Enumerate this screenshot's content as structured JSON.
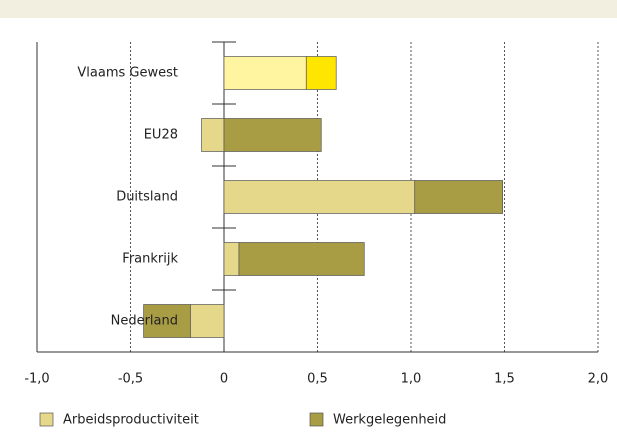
{
  "chart_data": {
    "type": "bar",
    "orientation": "horizontal",
    "stacked": true,
    "categories": [
      "Vlaams Gewest",
      "EU28",
      "Duitsland",
      "Frankrijk",
      "Nederland"
    ],
    "series": [
      {
        "name": "Arbeidsproductiviteit",
        "color": "#e6d88a",
        "colors": [
          "#fff5a0",
          "#e6d88a",
          "#e6d88a",
          "#e6d88a",
          "#e6d88a"
        ],
        "values": [
          0.44,
          -0.12,
          1.02,
          0.08,
          -0.18
        ]
      },
      {
        "name": "Werkgelegenheid",
        "color": "#a89d44",
        "colors": [
          "#ffe600",
          "#a89d44",
          "#a89d44",
          "#a89d44",
          "#a89d44"
        ],
        "values": [
          0.16,
          0.52,
          0.47,
          0.67,
          -0.25
        ]
      }
    ],
    "xlim": [
      -1.0,
      2.0
    ],
    "xticks": [
      {
        "value": -1.0,
        "label": "-1,0"
      },
      {
        "value": -0.5,
        "label": "-0,5"
      },
      0,
      {
        "value": 0.5,
        "label": "0,5"
      },
      {
        "value": 1.0,
        "label": "1,0"
      },
      {
        "value": 1.5,
        "label": "1,5"
      },
      {
        "value": 2.0,
        "label": "2,0"
      }
    ],
    "grid": true,
    "legend": "bottom"
  }
}
